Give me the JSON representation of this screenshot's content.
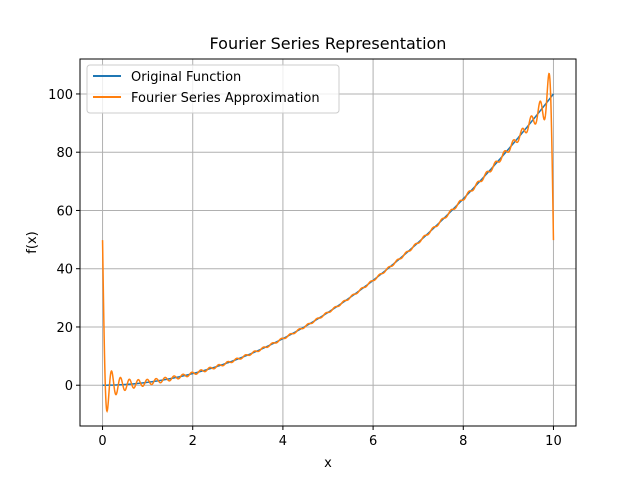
{
  "chart_data": {
    "type": "line",
    "title": "Fourier Series Representation",
    "xlabel": "x",
    "ylabel": "f(x)",
    "xlim": [
      -0.5,
      10.5
    ],
    "ylim": [
      -14,
      112
    ],
    "xticks": [
      0,
      2,
      4,
      6,
      8,
      10
    ],
    "yticks": [
      0,
      20,
      40,
      60,
      80,
      100
    ],
    "grid": true,
    "legend_position": "top-left",
    "colors": {
      "original": "#1f77b4",
      "approximation": "#ff7f0e"
    },
    "series": [
      {
        "name": "Original Function",
        "formula": "x^2",
        "x_range": [
          0,
          10
        ],
        "y_range": [
          0,
          100
        ]
      },
      {
        "name": "Fourier Series Approximation",
        "harmonics": 50,
        "period": 10,
        "endpoint_value": 50,
        "min_value_near_start": -9,
        "max_value_near_end": 107
      }
    ]
  }
}
